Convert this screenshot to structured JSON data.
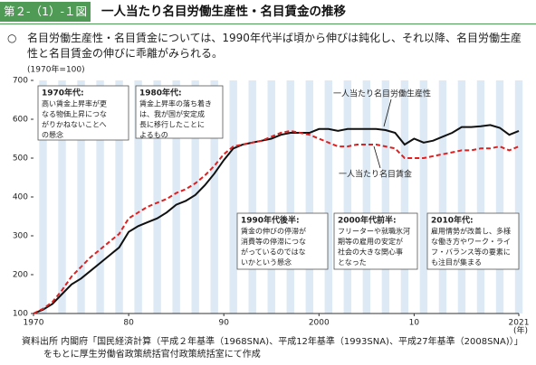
{
  "header": {
    "figure_no": "第２-（1）-１図",
    "title": "一人当たり名目労働生産性・名目賃金の推移"
  },
  "description": "名目労働生産性・名目賃金については、1990年代半ば頃から伸びは鈍化し、それ以降、名目労働生産性と名目賃金の伸びに乖離がみられる。",
  "chart_data": {
    "type": "line",
    "y_unit": "(1970年=100)",
    "x_unit": "(年)",
    "x": [
      1970,
      1971,
      1972,
      1973,
      1974,
      1975,
      1976,
      1977,
      1978,
      1979,
      1980,
      1981,
      1982,
      1983,
      1984,
      1985,
      1986,
      1987,
      1988,
      1989,
      1990,
      1991,
      1992,
      1993,
      1994,
      1995,
      1996,
      1997,
      1998,
      1999,
      2000,
      2001,
      2002,
      2003,
      2004,
      2005,
      2006,
      2007,
      2008,
      2009,
      2010,
      2011,
      2012,
      2013,
      2014,
      2015,
      2016,
      2017,
      2018,
      2019,
      2020,
      2021
    ],
    "series": [
      {
        "name": "一人当たり名目労働生産性",
        "color": "#111111",
        "dashed": false,
        "values": [
          100,
          110,
          125,
          150,
          175,
          190,
          210,
          230,
          250,
          270,
          310,
          325,
          335,
          345,
          360,
          380,
          390,
          405,
          430,
          460,
          495,
          525,
          535,
          540,
          545,
          550,
          560,
          565,
          565,
          565,
          575,
          575,
          570,
          575,
          575,
          575,
          575,
          572,
          565,
          535,
          550,
          540,
          545,
          555,
          565,
          580,
          580,
          582,
          585,
          578,
          560,
          570
        ]
      },
      {
        "name": "一人当たり名目賃金",
        "color": "#e02020",
        "dashed": true,
        "values": [
          100,
          112,
          130,
          160,
          195,
          220,
          245,
          265,
          285,
          305,
          345,
          360,
          375,
          385,
          395,
          410,
          420,
          435,
          455,
          480,
          510,
          530,
          535,
          540,
          545,
          555,
          565,
          570,
          565,
          560,
          550,
          540,
          530,
          530,
          535,
          535,
          535,
          530,
          525,
          500,
          500,
          500,
          505,
          510,
          515,
          520,
          520,
          525,
          525,
          530,
          520,
          530
        ]
      }
    ],
    "xlim": [
      1970,
      2021
    ],
    "xticks": [
      1970,
      {
        "value": 1980,
        "label": "80"
      },
      {
        "value": 1990,
        "label": "90"
      },
      2000,
      {
        "value": 2010,
        "label": "10"
      },
      2021
    ],
    "ylim": [
      100,
      700
    ],
    "yticks": [
      100,
      200,
      300,
      400,
      500,
      600,
      700
    ],
    "annotations": [
      {
        "title": "1970年代:",
        "lines": [
          "高い賃金上昇率が更",
          "なる物価上昇につな",
          "がりかねないことへ",
          "の懸念"
        ]
      },
      {
        "title": "1980年代:",
        "lines": [
          "賃金上昇率の落ち着き",
          "は、我が国が安定成",
          "長に移行したことに",
          "よるもの"
        ]
      },
      {
        "title": "1990年代後半:",
        "lines": [
          "賃金の伸びの停滞が",
          "消費等の停滞につな",
          "がっているのではな",
          "いかという懸念"
        ]
      },
      {
        "title": "2000年代前半:",
        "lines": [
          "フリーターや就職氷河",
          "期等の雇用の安定が",
          "社会の大きな関心事",
          "となった"
        ]
      },
      {
        "title": "2010年代:",
        "lines": [
          "雇用情勢が改善し、多様",
          "な働き方やワーク・ライ",
          "フ・バランス等の要素に",
          "も注目が集まる"
        ]
      }
    ]
  },
  "source": [
    "資料出所 内閣府「国民経済計算（平成２年基準（1968SNA)、平成12年基準（1993SNA)、平成27年基準（2008SNA)）」",
    "をもとに厚生労働省政策統括官付政策統括室にて作成"
  ]
}
